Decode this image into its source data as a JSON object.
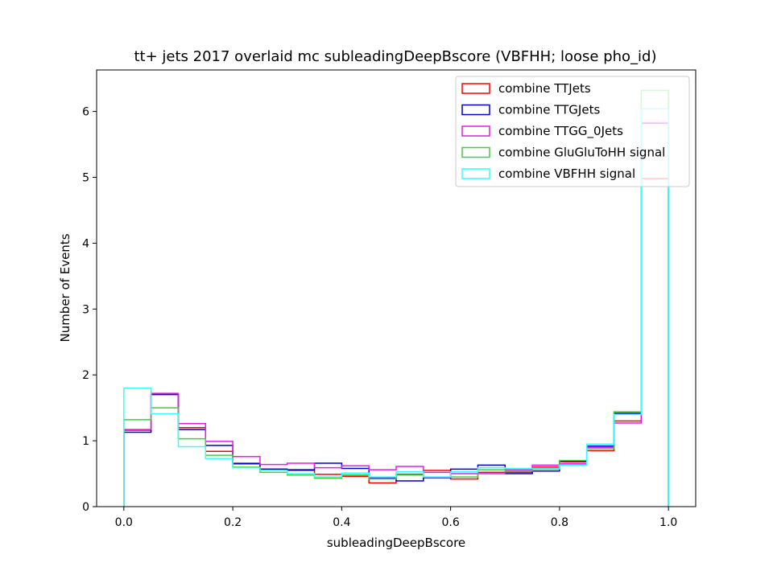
{
  "chart_data": {
    "type": "step-histogram",
    "title": "tt+ jets 2017 overlaid mc subleadingDeepBscore (VBFHH; loose pho_id)",
    "xlabel": "subleadingDeepBscore",
    "ylabel": "Number of Events",
    "xlim": [
      -0.05,
      1.05
    ],
    "ylim": [
      0,
      6.63
    ],
    "x_ticks": [
      0.0,
      0.2,
      0.4,
      0.6,
      0.8,
      1.0
    ],
    "x_tick_labels": [
      "0.0",
      "0.2",
      "0.4",
      "0.6",
      "0.8",
      "1.0"
    ],
    "y_ticks": [
      0,
      1,
      2,
      3,
      4,
      5,
      6
    ],
    "y_tick_labels": [
      "0",
      "1",
      "2",
      "3",
      "4",
      "5",
      "6"
    ],
    "grid": false,
    "legend_position": "top-right",
    "bin_edges": [
      0.0,
      0.05,
      0.1,
      0.15,
      0.2,
      0.25,
      0.3,
      0.35,
      0.4,
      0.45,
      0.5,
      0.55,
      0.6,
      0.65,
      0.7,
      0.75,
      0.8,
      0.85,
      0.9,
      0.95,
      1.0
    ],
    "series": [
      {
        "name": "combine TTJets",
        "color": "#ff0000",
        "values": [
          1.16,
          1.7,
          1.2,
          0.84,
          0.66,
          0.57,
          0.55,
          0.49,
          0.46,
          0.36,
          0.49,
          0.55,
          0.42,
          0.52,
          0.52,
          0.6,
          0.68,
          0.85,
          1.3,
          4.98
        ]
      },
      {
        "name": "combine TTGJets",
        "color": "#0000cc",
        "values": [
          1.13,
          1.71,
          1.17,
          0.93,
          0.65,
          0.57,
          0.56,
          0.66,
          0.58,
          0.44,
          0.39,
          0.44,
          0.57,
          0.63,
          0.5,
          0.54,
          0.69,
          0.92,
          1.42,
          5.82
        ]
      },
      {
        "name": "combine TTGG_0Jets",
        "color": "#e020e0",
        "values": [
          1.17,
          1.72,
          1.26,
          0.99,
          0.76,
          0.64,
          0.66,
          0.59,
          0.62,
          0.56,
          0.61,
          0.52,
          0.5,
          0.5,
          0.56,
          0.63,
          0.65,
          0.9,
          1.27,
          5.83
        ]
      },
      {
        "name": "combine GluGluToHH signal",
        "color": "#44cc44",
        "values": [
          1.32,
          1.5,
          1.03,
          0.78,
          0.6,
          0.52,
          0.48,
          0.43,
          0.48,
          0.42,
          0.48,
          0.45,
          0.45,
          0.56,
          0.54,
          0.57,
          0.7,
          0.88,
          1.44,
          6.32
        ]
      },
      {
        "name": "combine VBFHH signal",
        "color": "#33ffff",
        "values": [
          1.8,
          1.41,
          0.91,
          0.73,
          0.59,
          0.55,
          0.5,
          0.45,
          0.51,
          0.45,
          0.53,
          0.45,
          0.53,
          0.59,
          0.58,
          0.58,
          0.63,
          0.95,
          1.4,
          6.04
        ]
      }
    ]
  }
}
